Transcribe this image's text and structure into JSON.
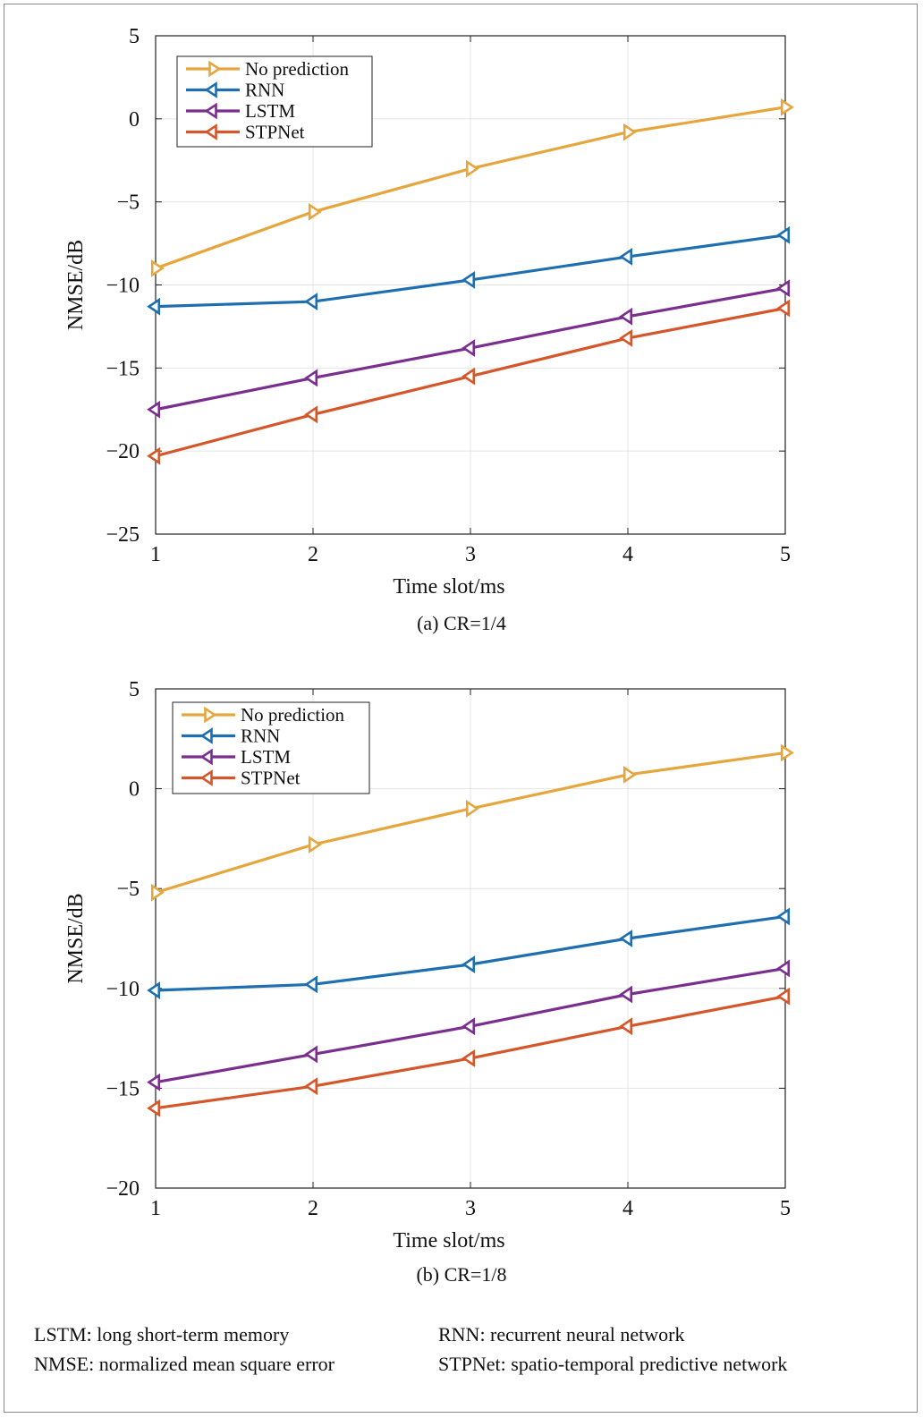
{
  "charts": [
    {
      "caption": "(a) CR=1/4",
      "chart_data": {
        "type": "line",
        "x": [
          1,
          2,
          3,
          4,
          5
        ],
        "xlabel": "Time slot/ms",
        "ylabel": "NMSE/dB",
        "xlim": [
          1,
          5
        ],
        "ylim": [
          -25,
          5
        ],
        "xticks": [
          "1",
          "2",
          "3",
          "4",
          "5"
        ],
        "yticks": [
          "5",
          "0",
          "−5",
          "−10",
          "−15",
          "−20",
          "−25"
        ],
        "ytick_values": [
          5,
          0,
          -5,
          -10,
          -15,
          -20,
          -25
        ],
        "grid": true,
        "legend_position": "top-left",
        "series": [
          {
            "name": "No prediction",
            "color": "#E5A63E",
            "marker": "triangle-right",
            "values": [
              -9.0,
              -5.6,
              -3.0,
              -0.8,
              0.7
            ]
          },
          {
            "name": "RNN",
            "color": "#1F6FB0",
            "marker": "triangle-left",
            "values": [
              -11.3,
              -11.0,
              -9.7,
              -8.3,
              -7.0
            ]
          },
          {
            "name": "LSTM",
            "color": "#7A2E8E",
            "marker": "triangle-left",
            "values": [
              -17.5,
              -15.6,
              -13.8,
              -11.9,
              -10.2
            ]
          },
          {
            "name": "STPNet",
            "color": "#D4562A",
            "marker": "triangle-left",
            "values": [
              -20.3,
              -17.8,
              -15.5,
              -13.2,
              -11.4
            ]
          }
        ]
      }
    },
    {
      "caption": "(b) CR=1/8",
      "chart_data": {
        "type": "line",
        "x": [
          1,
          2,
          3,
          4,
          5
        ],
        "xlabel": "Time slot/ms",
        "ylabel": "NMSE/dB",
        "xlim": [
          1,
          5
        ],
        "ylim": [
          -20,
          5
        ],
        "xticks": [
          "1",
          "2",
          "3",
          "4",
          "5"
        ],
        "yticks": [
          "5",
          "0",
          "−5",
          "−10",
          "−15",
          "−20"
        ],
        "ytick_values": [
          5,
          0,
          -5,
          -10,
          -15,
          -20
        ],
        "grid": true,
        "legend_position": "top-left",
        "series": [
          {
            "name": "No prediction",
            "color": "#E5A63E",
            "marker": "triangle-right",
            "values": [
              -5.2,
              -2.8,
              -1.0,
              0.7,
              1.8
            ]
          },
          {
            "name": "RNN",
            "color": "#1F6FB0",
            "marker": "triangle-left",
            "values": [
              -10.1,
              -9.8,
              -8.8,
              -7.5,
              -6.4
            ]
          },
          {
            "name": "LSTM",
            "color": "#7A2E8E",
            "marker": "triangle-left",
            "values": [
              -14.7,
              -13.3,
              -11.9,
              -10.3,
              -9.0
            ]
          },
          {
            "name": "STPNet",
            "color": "#D4562A",
            "marker": "triangle-left",
            "values": [
              -16.0,
              -14.9,
              -13.5,
              -11.9,
              -10.4
            ]
          }
        ]
      }
    }
  ],
  "footnotes": {
    "lstm": "LSTM: long short-term memory",
    "nmse": "NMSE: normalized mean square error",
    "rnn": "RNN: recurrent neural network",
    "stpnet": "STPNet: spatio-temporal predictive network"
  }
}
